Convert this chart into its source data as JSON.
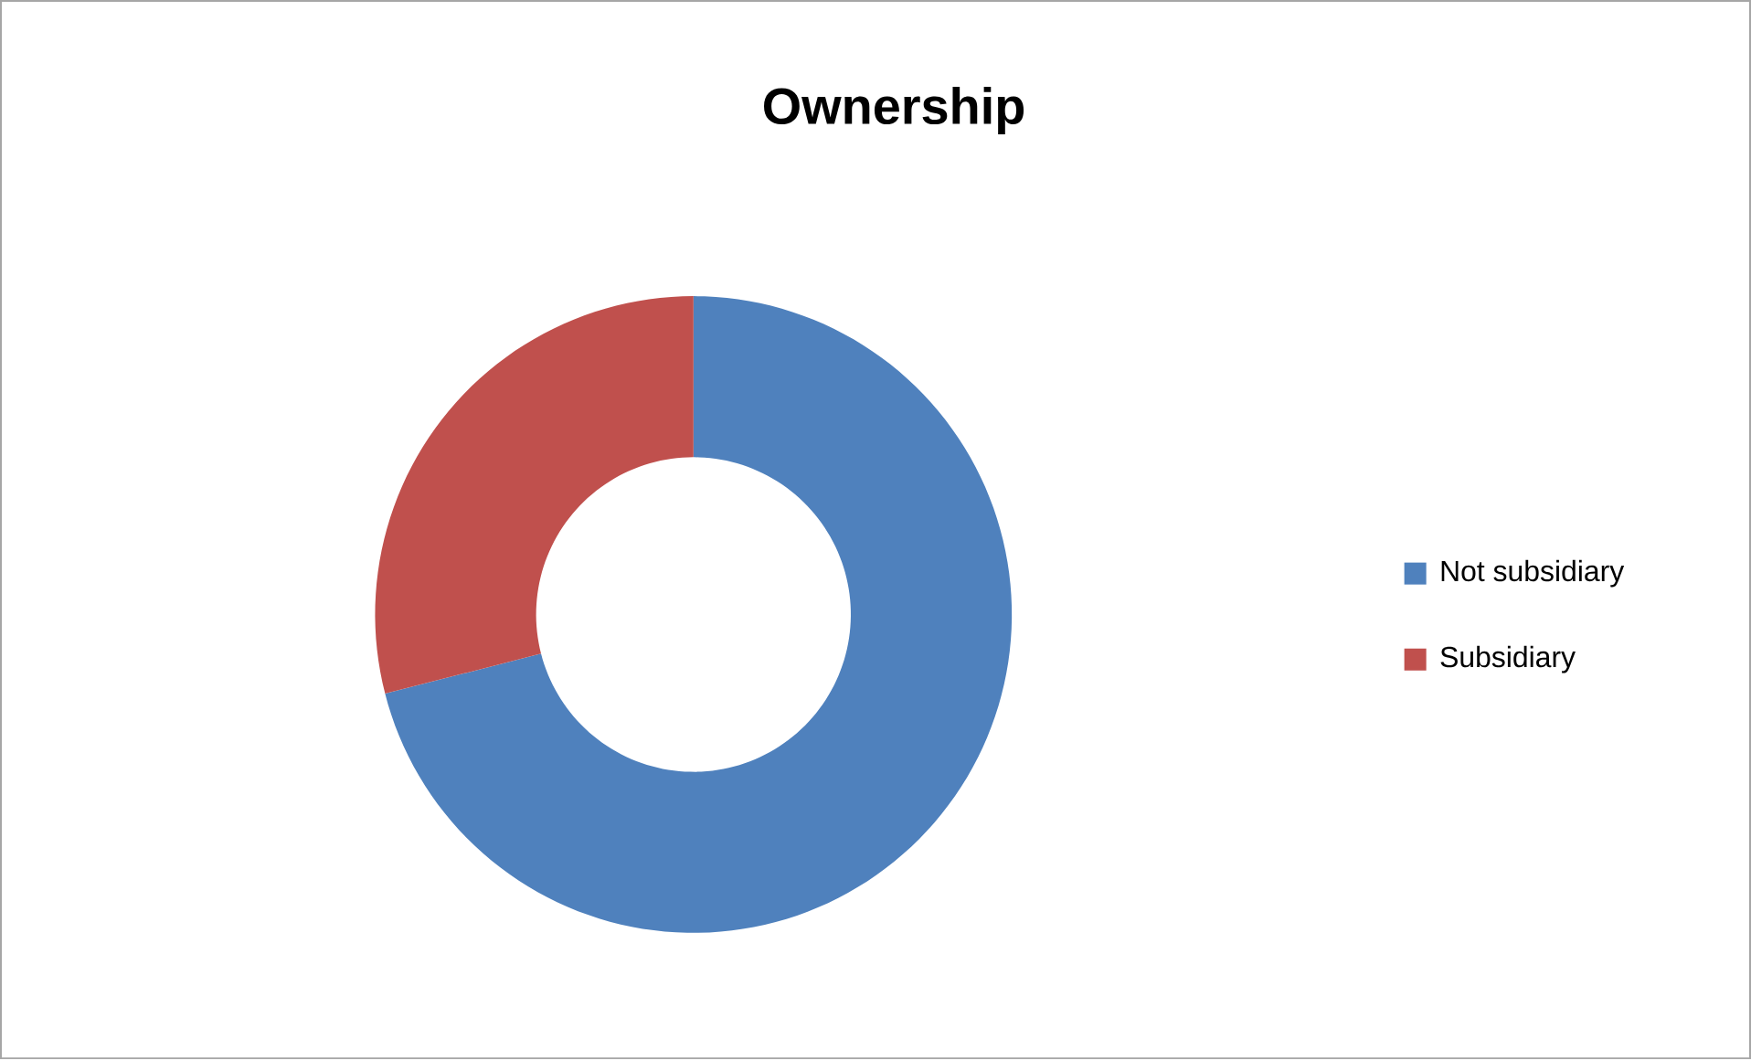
{
  "chart_data": {
    "type": "donut",
    "title": "Ownership",
    "categories": [
      "Not subsidiary",
      "Subsidiary"
    ],
    "values": [
      71,
      29
    ],
    "colors": [
      "#4f81bd",
      "#c0504d"
    ],
    "legend": "right"
  }
}
